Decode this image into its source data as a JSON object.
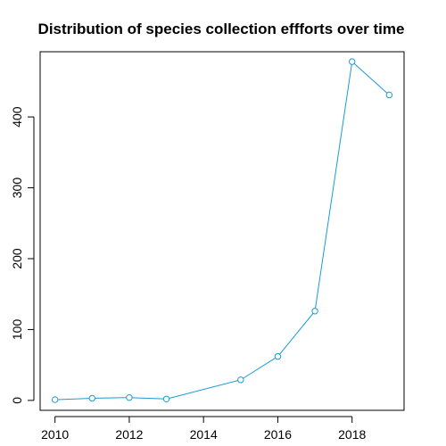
{
  "chart_data": {
    "type": "line",
    "title": "Distribution of species collection effforts over time",
    "xlabel": "",
    "ylabel": "",
    "x": [
      2010,
      2011,
      2012,
      2013,
      2015,
      2016,
      2017,
      2018,
      2019
    ],
    "series": [
      {
        "values": [
          1,
          3,
          4,
          2,
          29,
          62,
          126,
          478,
          431
        ],
        "color": "#1a9bd7"
      }
    ],
    "xlim": [
      2009.6,
      2019.4
    ],
    "ylim": [
      -14,
      492
    ],
    "xticks": [
      2010,
      2012,
      2014,
      2016,
      2018
    ],
    "yticks": [
      0,
      100,
      200,
      300,
      400
    ],
    "grid": false,
    "legend": "none",
    "markers": "open-circle"
  }
}
